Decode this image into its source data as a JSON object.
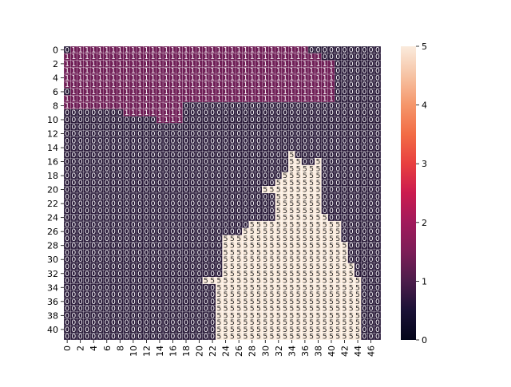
{
  "chart_data": {
    "type": "heatmap",
    "title": "",
    "xlabel": "",
    "ylabel": "",
    "n_cols": 48,
    "n_rows": 42,
    "x_tick_labels": [
      "0",
      "2",
      "4",
      "6",
      "8",
      "10",
      "12",
      "14",
      "16",
      "18",
      "20",
      "22",
      "24",
      "26",
      "28",
      "30",
      "32",
      "34",
      "36",
      "38",
      "40",
      "42",
      "44",
      "46"
    ],
    "y_tick_labels": [
      "0",
      "2",
      "4",
      "6",
      "8",
      "10",
      "12",
      "14",
      "16",
      "18",
      "20",
      "22",
      "24",
      "26",
      "28",
      "30",
      "32",
      "34",
      "36",
      "38",
      "40"
    ],
    "colorbar": {
      "min": 0,
      "max": 5,
      "ticks": [
        "0",
        "1",
        "2",
        "3",
        "4",
        "5"
      ]
    },
    "colormap": "rocket",
    "annotate": true,
    "cell_border_color": "#ffffff",
    "rows": [
      "011111111111111111111111111111111111100000000000",
      "111111111111111111111111111111111111111000000000",
      "111111111111111111111111111111111111111110000000",
      "111111111111111111111111111111111111111110000000",
      "111111111111111111111111111111111111111110000000",
      "111111111111111111111111111111111111111110000000",
      "011111111111111111111111111111111111111110000000",
      "111111111111111111111111111111111111111110000000",
      "111111111111111111000000000000000000000000000000",
      "000000000111111111000000000000000000000000000000",
      "000000000000001111000000000000000000000000000000",
      "000000000000000000000000000000000000000000000000",
      "000000000000000000000000000000000000000000000000",
      "000000000000000000000000000000000000000000000000",
      "000000000000000000000000000000000000000000000000",
      "000000000000000000000000000000000050000000000000",
      "000000000000000000000000000000000055005000000000",
      "000000000000000000000000000000000055555000000000",
      "000000000000000000000000000000000555555000000000",
      "000000000000000000000000000000005555555000000000",
      "000000000000000000000000000000555555555000000000",
      "000000000000000000000000000000005555555000000000",
      "000000000000000000000000000000005555555000000000",
      "000000000000000000000000000000005555555000000000",
      "000000000000000000000000000000005555555500000000",
      "000000000000000000000000000055555555555555000000",
      "000000000000000000000000000555555555555555000000",
      "000000000000000000000000555555555555555555000000",
      "000000000000000000000000555555555555555555500000",
      "000000000000000000000000555555555555555555500000",
      "000000000000000000000000555555555555555555500000",
      "000000000000000000000000555555555555555555550000",
      "000000000000000000000000555555555555555555550000",
      "000000000000000000000555555555555555555555555000",
      "000000000000000000000005555555555555555555555000",
      "000000000000000000000005555555555555555555555000",
      "000000000000000000000005555555555555555555555000",
      "000000000000000000000005555555555555555555555000",
      "000000000000000000000005555555555555555555555000",
      "000000000000000000000005555555555555555555555000",
      "000000000000000000000005555555555555555555555000",
      "000000000000000000000005555555555555555555555000"
    ],
    "value_colors": {
      "0": "#2a1b3a",
      "1": "#701f57",
      "5": "#faebdd"
    }
  }
}
